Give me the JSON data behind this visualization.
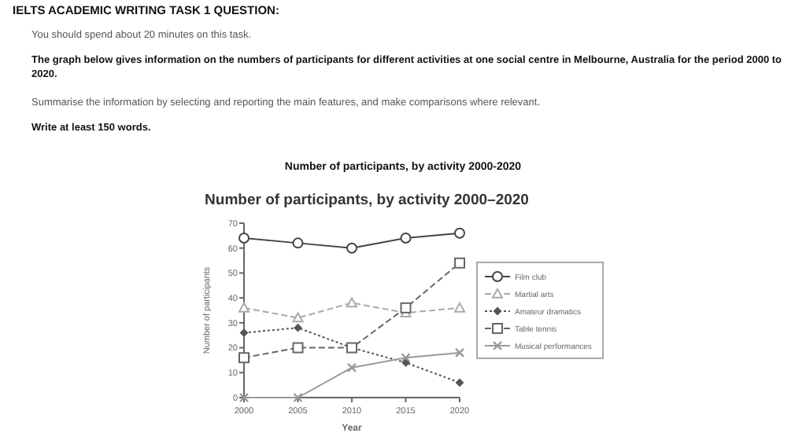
{
  "chart_data": {
    "type": "line",
    "title": "Number of participants, by activity 2000–2020",
    "subtitle": "Number of participants, by activity 2000-2020",
    "xlabel": "Year",
    "ylabel": "Number of participants",
    "annotations": [
      "IELTS ACADEMIC WRITING TASK 1 QUESTION:",
      "You should spend about 20 minutes on this task.",
      "The graph below gives information on the numbers of participants for different activities at one social centre in Melbourne, Australia for the period 2000 to 2020.",
      "Summarise the information by selecting and reporting the main features, and make comparisons where relevant.",
      "Write at least 150 words."
    ],
    "x": [
      2000,
      2005,
      2010,
      2015,
      2020
    ],
    "xlim": [
      2000,
      2020
    ],
    "xticks": [
      2000,
      2005,
      2010,
      2015,
      2020
    ],
    "ylim": [
      0,
      70
    ],
    "yticks": [
      0,
      10,
      20,
      30,
      40,
      50,
      60,
      70
    ],
    "grid": false,
    "legend": "right",
    "series": [
      {
        "name": "Film club",
        "color": "#444444",
        "values": [
          64,
          62,
          60,
          64,
          66
        ],
        "marker": "circle",
        "line_style": "solid"
      },
      {
        "name": "Martial arts",
        "color": "#aaaaaa",
        "values": [
          36,
          32,
          38,
          34,
          36
        ],
        "marker": "triangle",
        "line_style": "dashed"
      },
      {
        "name": "Amateur dramatics",
        "color": "#555555",
        "values": [
          26,
          28,
          20,
          14,
          6
        ],
        "marker": "diamond",
        "line_style": "dotted"
      },
      {
        "name": "Table tennis",
        "color": "#666666",
        "values": [
          16,
          20,
          20,
          36,
          54
        ],
        "marker": "square",
        "line_style": "dashed"
      },
      {
        "name": "Musical performances",
        "color": "#999999",
        "values": [
          0,
          0,
          12,
          16,
          18
        ],
        "marker": "cross",
        "line_style": "solid"
      }
    ]
  }
}
